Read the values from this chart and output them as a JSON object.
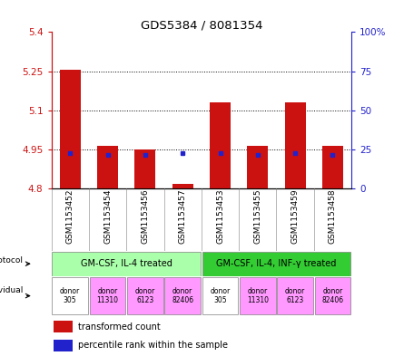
{
  "title": "GDS5384 / 8081354",
  "samples": [
    "GSM1153452",
    "GSM1153454",
    "GSM1153456",
    "GSM1153457",
    "GSM1153453",
    "GSM1153455",
    "GSM1153459",
    "GSM1153458"
  ],
  "bar_tops": [
    5.255,
    4.965,
    4.95,
    4.82,
    5.13,
    4.965,
    5.13,
    4.965
  ],
  "bar_bottoms": [
    4.8,
    4.8,
    4.8,
    4.8,
    4.8,
    4.8,
    4.8,
    4.8
  ],
  "blue_dot_y": [
    4.935,
    4.93,
    4.93,
    4.935,
    4.935,
    4.93,
    4.935,
    4.93
  ],
  "ylim": [
    4.8,
    5.4
  ],
  "yticks": [
    4.8,
    4.95,
    5.1,
    5.25,
    5.4
  ],
  "right_yticks": [
    0,
    25,
    50,
    75,
    100
  ],
  "right_ytick_labels": [
    "0",
    "25",
    "50",
    "75",
    "100%"
  ],
  "bar_color": "#cc1111",
  "dot_color": "#2222cc",
  "protocol_groups": [
    {
      "label": "GM-CSF, IL-4 treated",
      "start": 0,
      "end": 4,
      "color": "#aaffaa"
    },
    {
      "label": "GM-CSF, IL-4, INF-γ treated",
      "start": 4,
      "end": 8,
      "color": "#33cc33"
    }
  ],
  "individuals": [
    {
      "label": "donor\n305",
      "color": "#ffffff"
    },
    {
      "label": "donor\n11310",
      "color": "#ff99ff"
    },
    {
      "label": "donor\n6123",
      "color": "#ff99ff"
    },
    {
      "label": "donor\n82406",
      "color": "#ff99ff"
    },
    {
      "label": "donor\n305",
      "color": "#ffffff"
    },
    {
      "label": "donor\n11310",
      "color": "#ff99ff"
    },
    {
      "label": "donor\n6123",
      "color": "#ff99ff"
    },
    {
      "label": "donor\n82406",
      "color": "#ff99ff"
    }
  ],
  "left_axis_color": "#cc1111",
  "right_axis_color": "#2222cc"
}
